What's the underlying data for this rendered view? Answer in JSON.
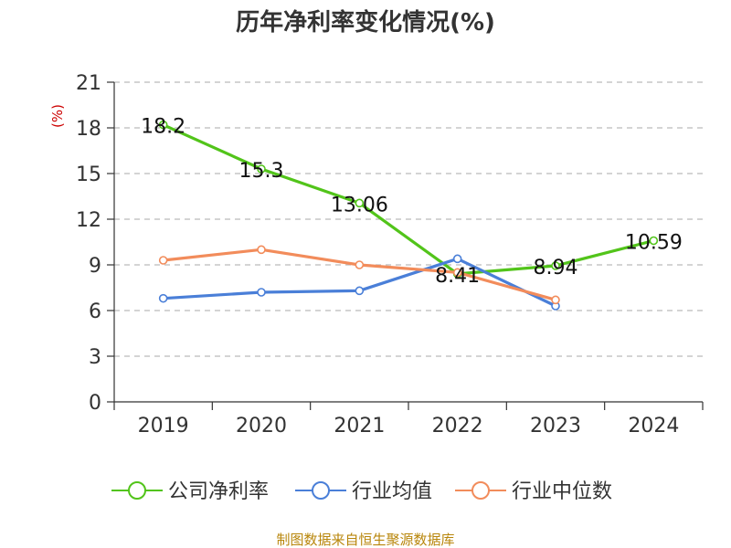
{
  "chart_data": {
    "type": "line",
    "title": "历年净利率变化情况(%)",
    "unit_label": "(%)",
    "categories": [
      "2019",
      "2020",
      "2021",
      "2022",
      "2023",
      "2024"
    ],
    "ylim": [
      0,
      21
    ],
    "yticks": [
      0,
      3,
      6,
      9,
      12,
      15,
      18,
      21
    ],
    "grid": true,
    "legend_position": "bottom",
    "series": [
      {
        "name": "公司净利率",
        "color": "#52c41a",
        "values": [
          18.2,
          15.3,
          13.06,
          8.41,
          8.94,
          10.59
        ],
        "labels": [
          "18.2",
          "15.3",
          "13.06",
          "8.41",
          "8.94",
          "10.59"
        ]
      },
      {
        "name": "行业均值",
        "color": "#4a7fd8",
        "values": [
          6.8,
          7.2,
          7.3,
          9.4,
          6.3,
          null
        ]
      },
      {
        "name": "行业中位数",
        "color": "#f28c5b",
        "values": [
          9.3,
          10.0,
          9.0,
          8.5,
          6.7,
          null
        ]
      }
    ]
  },
  "footer": {
    "source": "制图数据来自恒生聚源数据库"
  }
}
